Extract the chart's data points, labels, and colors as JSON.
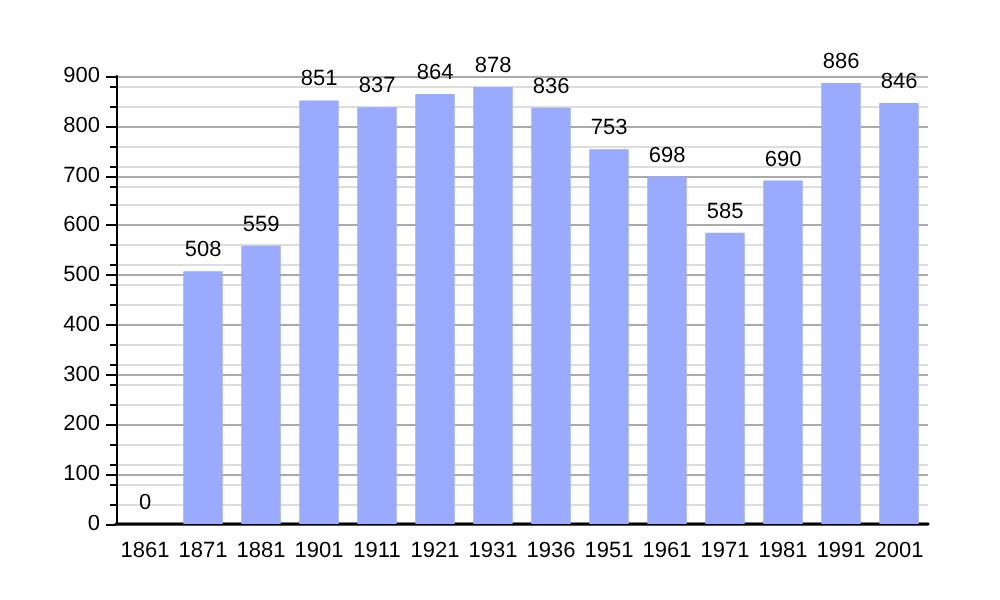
{
  "chart_data": {
    "type": "bar",
    "categories": [
      "1861",
      "1871",
      "1881",
      "1901",
      "1911",
      "1921",
      "1931",
      "1936",
      "1951",
      "1961",
      "1971",
      "1981",
      "1991",
      "2001"
    ],
    "values": [
      0,
      508,
      559,
      851,
      837,
      864,
      878,
      836,
      753,
      698,
      585,
      690,
      886,
      846
    ],
    "color": "#99aaff",
    "ylim": [
      0,
      900
    ],
    "yticks": [
      0,
      100,
      200,
      300,
      400,
      500,
      600,
      700,
      800,
      900
    ],
    "grid": "y",
    "data_labels": true
  }
}
